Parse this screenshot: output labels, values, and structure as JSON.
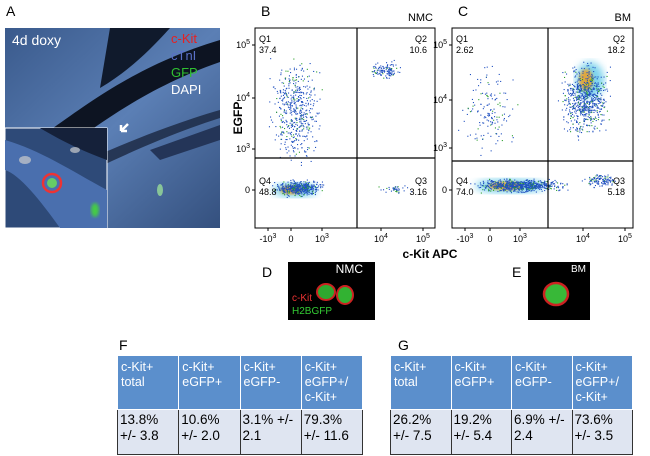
{
  "panel_a": {
    "label": "A",
    "condition": "4d doxy",
    "stains": [
      "c-Kit",
      "cTnI",
      "GFP",
      "DAPI"
    ]
  },
  "flow": {
    "y_label": "EGFP",
    "x_label": "c-Kit APC",
    "xticks": [
      {
        "base": "-10",
        "exp": "3"
      },
      {
        "base": "0"
      },
      {
        "base": "10",
        "exp": "3"
      },
      {
        "base": "10",
        "exp": "4"
      },
      {
        "base": "10",
        "exp": "5"
      }
    ],
    "yticks": [
      {
        "base": "10",
        "exp": "5"
      },
      {
        "base": "10",
        "exp": "4"
      },
      {
        "base": "10",
        "exp": "3"
      },
      {
        "base": "0"
      }
    ],
    "plots": [
      {
        "label": "B",
        "sample": "NMC",
        "quadrants": [
          {
            "name": "Q1",
            "value": "37.4"
          },
          {
            "name": "Q2",
            "value": "10.6"
          },
          {
            "name": "Q3",
            "value": "3.16"
          },
          {
            "name": "Q4",
            "value": "48.8"
          }
        ]
      },
      {
        "label": "C",
        "sample": "BM",
        "quadrants": [
          {
            "name": "Q1",
            "value": "2.62"
          },
          {
            "name": "Q2",
            "value": "18.2"
          },
          {
            "name": "Q3",
            "value": "5.18"
          },
          {
            "name": "Q4",
            "value": "74.0"
          }
        ]
      }
    ]
  },
  "panel_d": {
    "label": "D",
    "sample": "NMC",
    "stains": [
      "c-Kit",
      "H2BGFP"
    ]
  },
  "panel_e": {
    "label": "E",
    "sample": "BM"
  },
  "tables": [
    {
      "label": "F",
      "header": [
        "c-Kit+ total",
        "c-Kit+ eGFP+",
        "c-Kit+ eGFP-",
        "c-Kit+ eGFP+/ c-Kit+"
      ],
      "rows": [
        [
          "13.8% +/- 3.8",
          "10.6% +/- 2.0",
          "3.1% +/- 2.1",
          "79.3% +/- 11.6"
        ]
      ]
    },
    {
      "label": "G",
      "header": [
        "c-Kit+ total",
        "c-Kit+ eGFP+",
        "c-Kit+ eGFP-",
        "c-Kit+ eGFP+/ c-Kit+"
      ],
      "rows": [
        [
          "26.2% +/- 7.5",
          "19.2% +/- 5.4",
          "6.9% +/- 2.4",
          "73.6% +/- 3.5"
        ]
      ]
    }
  ]
}
